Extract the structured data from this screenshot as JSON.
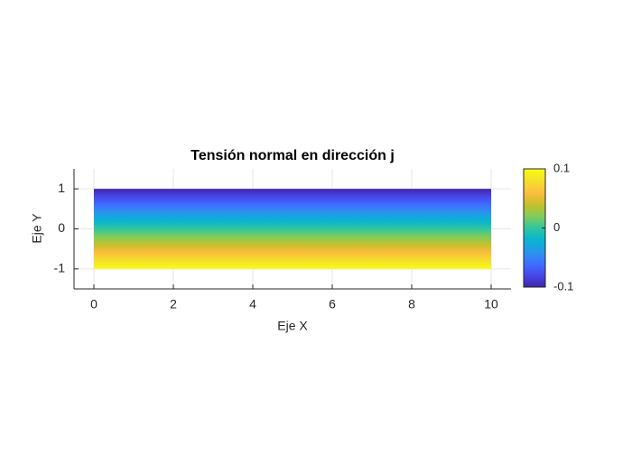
{
  "chart_data": {
    "type": "gradient-field",
    "title": "Tensión normal en dirección j",
    "xlabel": "Eje X",
    "ylabel": "Eje Y",
    "x": [
      0,
      10
    ],
    "y": [
      -1,
      1
    ],
    "values": [
      0.1,
      -0.1
    ],
    "xlim": [
      -0.5,
      10.5
    ],
    "ylim": [
      -1.5,
      1.5
    ],
    "xticks": [
      0,
      2,
      4,
      6,
      8,
      10
    ],
    "yticks": [
      -1,
      0,
      1
    ],
    "grid": true,
    "colormap": "parula",
    "clim": [
      -0.1,
      0.1
    ],
    "cticks": [
      -0.1,
      0,
      0.1
    ]
  }
}
